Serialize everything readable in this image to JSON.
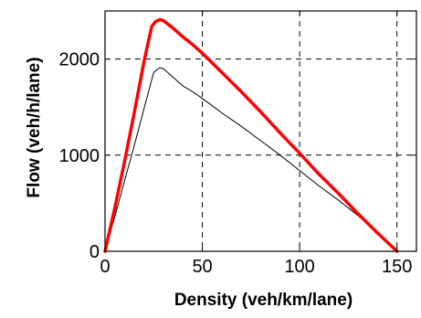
{
  "chart_data": {
    "type": "line",
    "title": "",
    "xlabel": "Density (veh/km/lane)",
    "ylabel": "Flow (veh/h/lane)",
    "xlim": [
      0,
      160
    ],
    "ylim": [
      0,
      2500
    ],
    "xticks": [
      0,
      50,
      100,
      150
    ],
    "yticks": [
      0,
      1000,
      2000
    ],
    "xtick_labels": [
      "0",
      "50",
      "100",
      "150"
    ],
    "ytick_labels": [
      "0",
      "1000",
      "2000"
    ],
    "grid": true,
    "grid_style": "dashed",
    "legend": "none",
    "series": [
      {
        "color": "#000000",
        "line_width": "thin",
        "x": [
          0,
          5,
          10,
          15,
          20,
          25,
          28,
          30,
          35,
          40,
          45,
          50,
          60,
          70,
          80,
          90,
          100,
          110,
          120,
          130,
          140,
          150
        ],
        "y": [
          0,
          360,
          730,
          1100,
          1480,
          1860,
          1910,
          1900,
          1810,
          1720,
          1660,
          1590,
          1440,
          1300,
          1150,
          1000,
          840,
          680,
          530,
          370,
          200,
          0
        ]
      },
      {
        "color": "#ff0000",
        "line_width": "thick",
        "x": [
          0,
          5,
          10,
          15,
          20,
          24,
          26,
          28,
          30,
          35,
          40,
          45,
          50,
          60,
          70,
          80,
          90,
          100,
          110,
          120,
          130,
          140,
          150
        ],
        "y": [
          0,
          450,
          930,
          1440,
          1970,
          2340,
          2390,
          2410,
          2400,
          2320,
          2230,
          2150,
          2060,
          1860,
          1660,
          1450,
          1230,
          1020,
          800,
          600,
          390,
          190,
          0
        ]
      }
    ]
  }
}
